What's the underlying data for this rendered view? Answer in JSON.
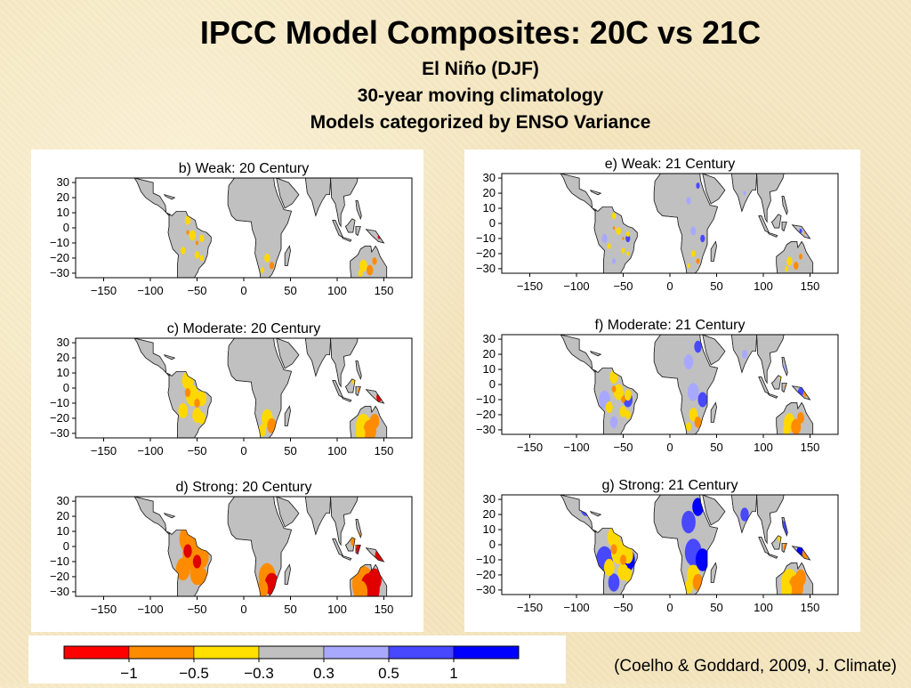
{
  "header": {
    "title": "IPCC Model Composites: 20C vs 21C",
    "line1": "El Niño (DJF)",
    "line2": "30-year moving climatology",
    "line3": "Models categorized by ENSO Variance"
  },
  "panels": [
    {
      "id": "b",
      "title": "b) Weak: 20 Century",
      "intensity": 0.5,
      "warm": true
    },
    {
      "id": "c",
      "title": "c) Moderate: 20 Century",
      "intensity": 1.0,
      "warm": true
    },
    {
      "id": "d",
      "title": "d) Strong: 20 Century",
      "intensity": 1.5,
      "warm": true
    },
    {
      "id": "e",
      "title": "e) Weak: 21 Century",
      "intensity": 0.5,
      "warm": false
    },
    {
      "id": "f",
      "title": "f) Moderate: 21 Century",
      "intensity": 1.0,
      "warm": false
    },
    {
      "id": "g",
      "title": "g) Strong: 21 Century",
      "intensity": 1.5,
      "warm": false
    }
  ],
  "axes": {
    "x_ticks": [
      "−150",
      "−100",
      "−50",
      "0",
      "50",
      "100",
      "150"
    ],
    "y_ticks": [
      "30",
      "20",
      "10",
      "0",
      "−10",
      "−20",
      "−30"
    ]
  },
  "colorbar": {
    "colors": [
      "#ff0000",
      "#ff8c00",
      "#ffe000",
      "#c0c0c0",
      "#a8a8ff",
      "#4848ff",
      "#0000ff"
    ],
    "labels": [
      "−1",
      "−0.5",
      "−0.3",
      "0.3",
      "0.5",
      "1"
    ]
  },
  "map_colors": {
    "land": "#c0c0c0",
    "yellow": "#ffd800",
    "orange": "#ff8c00",
    "red": "#e00000",
    "lightblue": "#a8a8ff",
    "blue": "#4848ff",
    "darkblue": "#0000ff"
  },
  "credit": "(Coelho & Goddard, 2009, J. Climate)"
}
